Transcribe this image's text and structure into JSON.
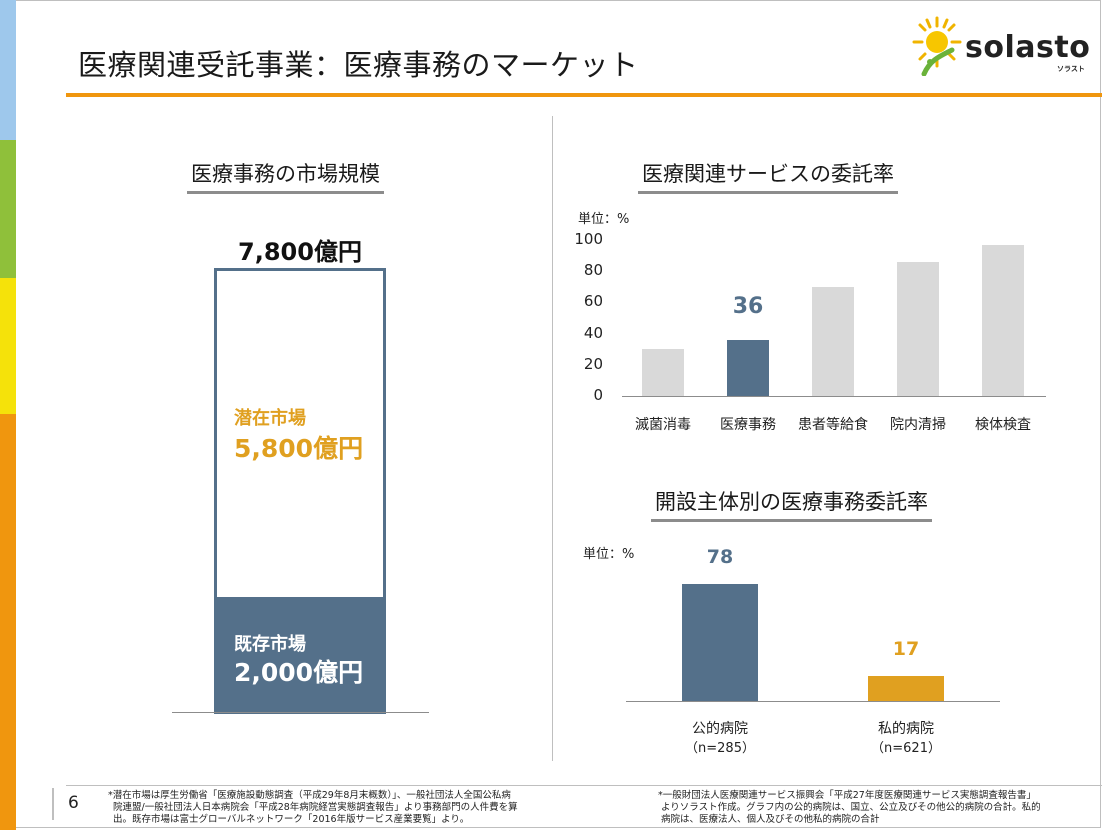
{
  "header": {
    "title": "医療関連受託事業：医療事務のマーケット",
    "logo_text": "solasto",
    "logo_sub": "ソラスト"
  },
  "left_panel": {
    "heading": "医療事務の市場規模",
    "total_label": "7,800億円",
    "potential": {
      "name": "潜在市場",
      "amount": "5,800億円"
    },
    "existing": {
      "name": "既存市場",
      "amount": "2,000億円"
    }
  },
  "chart_data": [
    {
      "type": "bar",
      "title": "医療関連サービスの委託率",
      "unit_label": "単位：%",
      "categories": [
        "滅菌消毒",
        "医療事務",
        "患者等給食",
        "院内清掃",
        "検体検査"
      ],
      "values": [
        30,
        36,
        70,
        86,
        97
      ],
      "highlight_index": 1,
      "data_label": "36",
      "yticks": [
        "0",
        "20",
        "40",
        "60",
        "80",
        "100"
      ],
      "ylim": [
        0,
        100
      ],
      "colors": {
        "default": "#d9d9d9",
        "highlight": "#54708a"
      }
    },
    {
      "type": "bar",
      "title": "開設主体別の医療事務委託率",
      "unit_label": "単位：%",
      "categories": [
        "公的病院",
        "私的病院"
      ],
      "sublabels": [
        "（n=285）",
        "（n=621）"
      ],
      "values": [
        78,
        17
      ],
      "data_labels": [
        "78",
        "17"
      ],
      "ylim": [
        0,
        100
      ],
      "colors": [
        "#54708a",
        "#e0a020"
      ]
    }
  ],
  "footer": {
    "page_number": "6",
    "note_left": [
      "*潜在市場は厚生労働省「医療施設動態調査（平成29年8月末概数）」、一般社団法人全国公私病",
      "院連盟/一般社団法人日本病院会「平成28年病院経営実態調査報告」より事務部門の人件費を算",
      "出。既存市場は富士グローバルネットワーク「2016年版サービス産業要覧」より。"
    ],
    "note_right": [
      "*一般財団法人医療関連サービス振興会「平成27年度医療関連サービス実態調査報告書」",
      "よりソラスト作成。グラフ内の公的病院は、国立、公立及びその他公的病院の合計。私的",
      "病院は、医療法人、個人及びその他私的病院の合計"
    ]
  },
  "colors": {
    "accent_orange": "#f0960e",
    "slate": "#54708a",
    "gold": "#e0a020",
    "stripe": [
      "#9ec8ec",
      "#8fc03a",
      "#f5e20a",
      "#f0960e"
    ]
  }
}
